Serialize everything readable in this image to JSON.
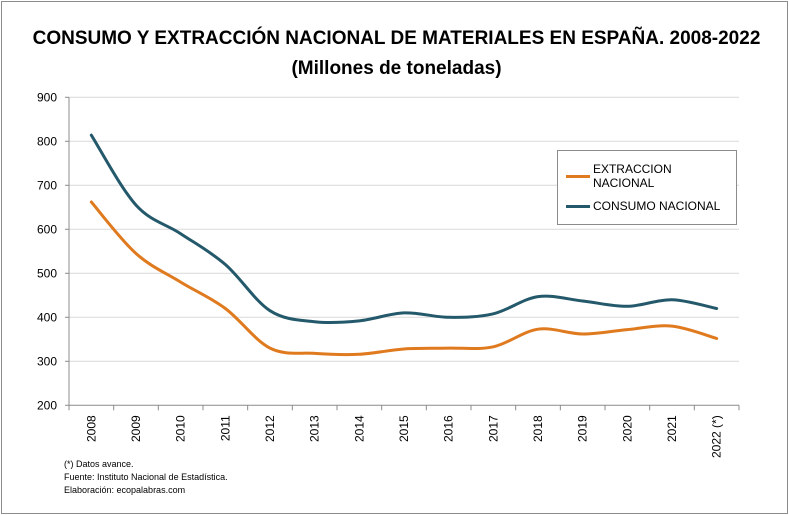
{
  "chart_data": {
    "type": "line",
    "title": "CONSUMO Y EXTRACCIÓN NACIONAL DE MATERIALES EN ESPAÑA. 2008-2022",
    "subtitle": "(Millones de toneladas)",
    "xlabel": "",
    "ylabel": "",
    "categories": [
      "2008",
      "2009",
      "2010",
      "2011",
      "2012",
      "2013",
      "2014",
      "2015",
      "2016",
      "2017",
      "2018",
      "2019",
      "2020",
      "2021",
      "2022 (*)"
    ],
    "ylim": [
      200,
      900
    ],
    "yticks": [
      200,
      300,
      400,
      500,
      600,
      700,
      800,
      900
    ],
    "grid": true,
    "legend_placement": "right",
    "series": [
      {
        "name": "EXTRACCION NACIONAL",
        "color": "#e07a1f",
        "values": [
          662,
          545,
          480,
          420,
          330,
          318,
          316,
          328,
          330,
          333,
          373,
          362,
          372,
          380,
          352
        ]
      },
      {
        "name": "CONSUMO NACIONAL",
        "color": "#24596b",
        "values": [
          814,
          655,
          590,
          520,
          415,
          390,
          392,
          410,
          400,
          408,
          447,
          437,
          425,
          440,
          420
        ]
      }
    ]
  },
  "notes": [
    "(*) Datos avance.",
    "Fuente: Instituto Nacional de Estadística.",
    "Elaboración: ecopalabras.com"
  ]
}
